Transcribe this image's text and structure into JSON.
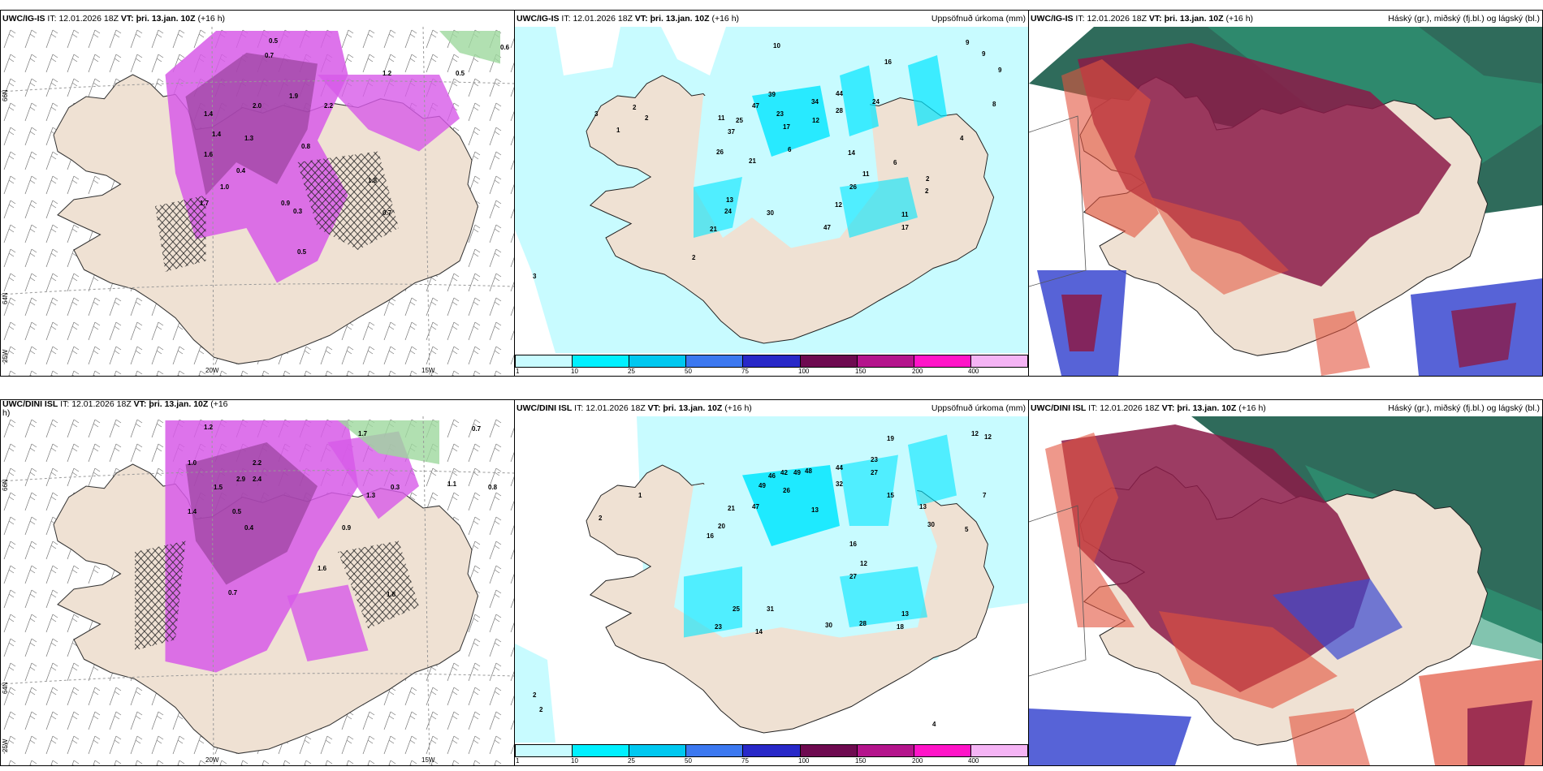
{
  "panels": {
    "top_left": {
      "model": "UWC/IG-IS",
      "it_label": "IT:",
      "it_value": "12.01.2026 18Z",
      "vt_label": "VT:",
      "vt_value": "þri. 13.jan. 10Z",
      "lead": "(+16 h)",
      "axis": {
        "lat66": "66N",
        "lat64": "64N",
        "lon25": "25W",
        "lon20": "20W",
        "lon15": "15W"
      },
      "values": [
        "0.5",
        "0.6",
        "0.5",
        "0.7",
        "1.4",
        "2.0",
        "2.2",
        "1.9",
        "1.8",
        "1.7",
        "1.6",
        "1.4",
        "1.0",
        "1.3",
        "1.2",
        "0.8",
        "0.4",
        "0.9",
        "0.3",
        "0.5",
        "0.7"
      ]
    },
    "top_middle": {
      "model": "UWC/IG-IS",
      "it_label": "IT:",
      "it_value": "12.01.2026 18Z",
      "vt_label": "VT:",
      "vt_value": "þri. 13.jan. 10Z",
      "lead": "(+16 h)",
      "title": "Uppsöfnuð úrkoma (mm)",
      "values": [
        "10",
        "9",
        "9",
        "9",
        "8",
        "3",
        "2",
        "2",
        "1",
        "11",
        "25",
        "39",
        "47",
        "34",
        "44",
        "24",
        "28",
        "16",
        "37",
        "23",
        "17",
        "12",
        "21",
        "26",
        "14",
        "13",
        "24",
        "30",
        "26",
        "6",
        "6",
        "2",
        "12",
        "11",
        "17",
        "11",
        "2",
        "4",
        "3",
        "2",
        "47",
        "21"
      ]
    },
    "top_right": {
      "model": "UWC/IG-IS",
      "it_label": "IT:",
      "it_value": "12.01.2026 18Z",
      "vt_label": "VT:",
      "vt_value": "þri. 13.jan. 10Z",
      "lead": "(+16 h)",
      "title": "Háský (gr.), miðský (fj.bl.) og lágský (bl.)"
    },
    "bottom_left": {
      "model": "UWC/DINI ISL",
      "it_label": "IT:",
      "it_value": "12.01.2026 18Z",
      "vt_label": "VT:",
      "vt_value": "þri. 13.jan. 10Z",
      "lead": "(+16",
      "lead_wrap": "h)",
      "axis": {
        "lat66": "66N",
        "lat64": "64N",
        "lon25": "25W",
        "lon20": "20W",
        "lon15": "15W"
      },
      "values": [
        "1.2",
        "0.7",
        "1.7",
        "2.2",
        "2.4",
        "1.5",
        "1.4",
        "2.9",
        "1.0",
        "0.5",
        "0.4",
        "0.3",
        "0.8",
        "1.1",
        "1.3",
        "1.6",
        "0.7",
        "0.9",
        "1.8"
      ]
    },
    "bottom_middle": {
      "model": "UWC/DINI ISL",
      "it_label": "IT:",
      "it_value": "12.01.2026 18Z",
      "vt_label": "VT:",
      "vt_value": "þri. 13.jan. 10Z",
      "lead": "(+16 h)",
      "title": "Uppsöfnuð úrkoma (mm)",
      "values": [
        "12",
        "12",
        "19",
        "23",
        "27",
        "44",
        "32",
        "49",
        "46",
        "42",
        "49",
        "48",
        "26",
        "21",
        "47",
        "20",
        "16",
        "15",
        "13",
        "13",
        "30",
        "2",
        "1",
        "7",
        "5",
        "16",
        "12",
        "27",
        "13",
        "31",
        "30",
        "28",
        "18",
        "25",
        "23",
        "14",
        "2",
        "4",
        "2"
      ]
    },
    "bottom_right": {
      "model": "UWC/DINI ISL",
      "it_label": "IT:",
      "it_value": "12.01.2026 18Z",
      "vt_label": "VT:",
      "vt_value": "þri. 13.jan. 10Z",
      "lead": "(+16 h)",
      "title": "Háský (gr.), miðský (fj.bl.) og lágský (bl.)"
    }
  },
  "colorbar": {
    "ticks": [
      "1",
      "10",
      "25",
      "50",
      "75",
      "100",
      "150",
      "200",
      "400"
    ],
    "colors": [
      "#c8fbff",
      "#00f0ff",
      "#00c8f0",
      "#3c78f0",
      "#2828c8",
      "#6e0a50",
      "#b4148c",
      "#ff14c8",
      "#f5b4f5"
    ]
  },
  "colors": {
    "land": "#efe1d3",
    "sea_light": "#c8fbff",
    "precip_cyan": "#00e6ff",
    "snow_magenta": "#d75ae8",
    "cloud_high": "#2f6b5b",
    "cloud_mid": "#8b1a48",
    "cloud_low": "#3a48d0"
  }
}
